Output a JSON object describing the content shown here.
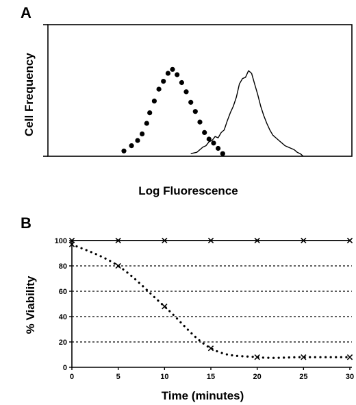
{
  "panels": {
    "a": {
      "label": "A"
    },
    "b": {
      "label": "B"
    }
  },
  "chart_data": [
    {
      "type": "line",
      "panel": "A",
      "xlabel": "Log Fluorescence",
      "ylabel": "Cell Frequency",
      "xlim": [
        0,
        100
      ],
      "ylim": [
        0,
        100
      ],
      "grid": false,
      "series": [
        {
          "style": "dotted-markers",
          "color": "#000000",
          "x": [
            25,
            27.5,
            29.5,
            31,
            32.5,
            33.5,
            35,
            36.5,
            38,
            39.5,
            41,
            42.5,
            44,
            45.5,
            47,
            48.5,
            50,
            51.5,
            53,
            54.5,
            56,
            57.5
          ],
          "y": [
            4,
            8,
            12,
            17,
            25,
            33,
            42,
            51,
            57,
            63,
            66,
            62,
            56,
            49,
            41,
            34,
            26,
            18,
            13,
            10,
            6,
            2
          ]
        },
        {
          "style": "solid",
          "color": "#000000",
          "x": [
            47,
            49,
            51,
            52,
            53,
            54,
            55,
            56,
            57,
            58,
            59,
            60,
            61,
            62,
            63,
            64,
            65,
            66,
            67,
            68,
            69,
            70,
            71,
            72,
            73,
            74,
            75,
            76,
            77,
            78,
            79,
            80,
            81,
            82,
            83,
            84
          ],
          "y": [
            2,
            3,
            7,
            8,
            11,
            12,
            15,
            14,
            18,
            20,
            27,
            33,
            38,
            45,
            55,
            59,
            60,
            65,
            63,
            55,
            47,
            38,
            31,
            25,
            20,
            16,
            14,
            12,
            10,
            8,
            7,
            6,
            5,
            3,
            2,
            0
          ]
        }
      ]
    },
    {
      "type": "line",
      "panel": "B",
      "xlabel": "Time (minutes)",
      "ylabel": "% Viability",
      "x_ticks": [
        "0",
        "5",
        "10",
        "15",
        "20",
        "25",
        "30"
      ],
      "y_ticks": [
        "0",
        "20",
        "40",
        "60",
        "80",
        "100"
      ],
      "xlim": [
        0,
        30
      ],
      "ylim": [
        0,
        100
      ],
      "grid": "horizontal-dotted",
      "series": [
        {
          "style": "solid",
          "marker": "x",
          "color": "#000000",
          "x": [
            0,
            5,
            10,
            15,
            20,
            25,
            30
          ],
          "y": [
            100,
            100,
            100,
            100,
            100,
            100,
            100
          ]
        },
        {
          "style": "dotted",
          "marker": "x",
          "color": "#000000",
          "x": [
            0,
            5,
            10,
            15,
            20,
            25,
            30
          ],
          "y": [
            97,
            80,
            48,
            15,
            8,
            8,
            8
          ]
        }
      ]
    }
  ]
}
